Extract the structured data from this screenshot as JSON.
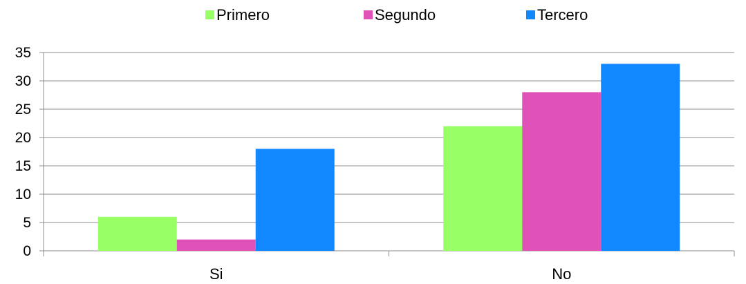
{
  "chart_data": {
    "type": "bar",
    "categories": [
      "Si",
      "No"
    ],
    "series": [
      {
        "name": "Primero",
        "values": [
          6,
          22
        ]
      },
      {
        "name": "Segundo",
        "values": [
          2,
          28
        ]
      },
      {
        "name": "Tercero",
        "values": [
          18,
          33
        ]
      }
    ],
    "title": "",
    "xlabel": "",
    "ylabel": "",
    "ylim": [
      0,
      35
    ],
    "yticks": [
      "0",
      "5",
      "10",
      "15",
      "20",
      "25",
      "30",
      "35"
    ],
    "grid": true,
    "legend_position": "top",
    "colors": [
      "#99ff66",
      "#e052b8",
      "#1188ff"
    ]
  }
}
